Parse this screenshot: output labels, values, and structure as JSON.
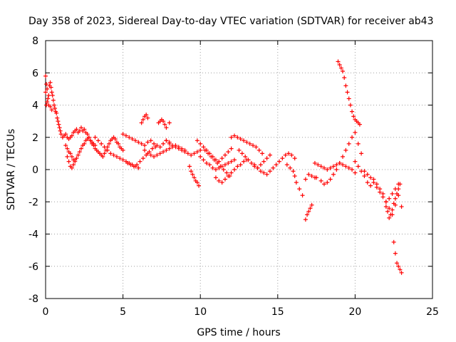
{
  "chart_data": {
    "type": "scatter",
    "title": "Day 358 of 2023, Sidereal Day-to-day VTEC variation (SDTVAR) for receiver ab43",
    "xlabel": "GPS time / hours",
    "ylabel": "SDTVAR / TECUs",
    "xlim": [
      0,
      25
    ],
    "ylim": [
      -8,
      8
    ],
    "xticks": [
      0,
      5,
      10,
      15,
      20,
      25
    ],
    "yticks": [
      -8,
      -6,
      -4,
      -2,
      0,
      2,
      4,
      6,
      8
    ],
    "grid": true,
    "marker": "plus",
    "color": "#ff0000",
    "series": [
      {
        "name": "SDTVAR",
        "x": [
          0.0,
          0.05,
          0.1,
          0.15,
          0.2,
          0.25,
          0.3,
          0.35,
          0.4,
          0.45,
          0.5,
          0.55,
          0.6,
          0.65,
          0.7,
          0.75,
          0.8,
          0.85,
          0.9,
          0.95,
          1.0,
          0.0,
          0.05,
          0.1,
          0.2,
          0.3,
          0.4,
          1.1,
          1.2,
          1.3,
          1.4,
          1.5,
          1.6,
          1.7,
          1.8,
          1.9,
          2.0,
          2.1,
          2.2,
          2.3,
          2.4,
          2.5,
          2.6,
          2.7,
          2.8,
          2.9,
          3.0,
          1.3,
          1.4,
          1.5,
          1.6,
          1.7,
          1.8,
          1.9,
          2.0,
          2.1,
          2.2,
          2.3,
          2.4,
          2.5,
          2.6,
          2.7,
          2.8,
          2.9,
          3.0,
          3.1,
          3.2,
          1.4,
          1.5,
          1.6,
          1.7,
          1.8,
          1.9,
          3.1,
          3.2,
          3.3,
          3.4,
          3.5,
          3.6,
          3.7,
          3.8,
          3.9,
          4.0,
          4.1,
          4.2,
          4.3,
          4.4,
          4.5,
          4.6,
          4.7,
          4.8,
          4.9,
          5.0,
          3.2,
          3.4,
          3.6,
          3.8,
          4.0,
          4.2,
          4.4,
          4.6,
          4.8,
          5.0,
          5.2,
          5.4,
          5.6,
          5.8,
          6.0,
          5.0,
          5.2,
          5.4,
          5.6,
          5.8,
          6.0,
          6.2,
          6.4,
          6.6,
          6.8,
          7.0,
          7.2,
          7.4,
          7.6,
          7.8,
          8.0,
          5.3,
          5.5,
          5.7,
          5.9,
          6.1,
          6.3,
          6.5,
          6.7,
          6.9,
          7.1,
          6.2,
          6.3,
          6.4,
          6.5,
          6.6,
          7.3,
          7.4,
          7.5,
          7.6,
          7.7,
          7.8,
          8.0,
          6.4,
          6.6,
          6.8,
          7.0,
          7.2,
          7.4,
          7.6,
          7.8,
          8.0,
          8.2,
          8.4,
          8.6,
          8.8,
          9.0,
          7.8,
          8.0,
          8.2,
          8.4,
          8.6,
          8.8,
          9.0,
          9.2,
          9.4,
          9.6,
          9.8,
          10.0,
          9.3,
          9.4,
          9.5,
          9.6,
          9.7,
          9.8,
          9.9,
          9.8,
          10.0,
          10.2,
          10.4,
          10.6,
          10.8,
          11.0,
          11.2,
          11.4,
          11.6,
          11.8,
          12.0,
          10.0,
          10.2,
          10.4,
          10.6,
          10.8,
          11.0,
          11.2,
          11.4,
          11.6,
          11.8,
          12.0,
          12.2,
          10.3,
          10.5,
          10.7,
          10.9,
          11.1,
          11.3,
          11.5,
          11.7,
          11.9,
          11.0,
          11.2,
          11.4,
          11.6,
          11.8,
          12.0,
          12.2,
          12.4,
          12.6,
          12.8,
          13.0,
          12.0,
          12.2,
          12.4,
          12.6,
          12.8,
          13.0,
          13.2,
          13.4,
          13.6,
          13.8,
          14.0,
          12.5,
          12.7,
          12.9,
          13.1,
          13.3,
          13.5,
          13.7,
          13.9,
          14.1,
          14.3,
          14.5,
          13.5,
          13.7,
          13.9,
          14.1,
          14.3,
          14.5,
          14.7,
          14.9,
          15.1,
          15.3,
          15.5,
          15.7,
          15.9,
          16.1,
          15.6,
          15.8,
          16.0,
          16.1,
          16.2,
          16.4,
          16.6,
          16.8,
          16.9,
          17.0,
          17.1,
          17.2,
          16.8,
          17.0,
          17.2,
          17.4,
          17.4,
          17.6,
          17.8,
          18.0,
          18.2,
          18.4,
          18.6,
          18.8,
          19.0,
          19.2,
          19.4,
          19.6,
          19.8,
          20.0,
          17.5,
          17.8,
          18.0,
          18.2,
          18.4,
          18.6,
          18.8,
          19.0,
          19.2,
          19.4,
          19.6,
          19.8,
          20.0,
          20.2,
          20.4,
          18.9,
          19.0,
          19.1,
          19.2,
          19.3,
          19.4,
          19.5,
          19.6,
          19.7,
          19.8,
          19.9,
          20.0,
          20.1,
          20.2,
          20.3,
          20.0,
          20.2,
          20.4,
          20.6,
          20.8,
          21.0,
          21.2,
          21.4,
          21.6,
          21.8,
          22.0,
          22.2,
          22.4,
          22.6,
          22.8,
          23.0,
          20.6,
          20.8,
          21.0,
          21.2,
          21.4,
          21.6,
          21.8,
          22.0,
          22.2,
          22.4,
          22.6,
          22.8,
          22.0,
          22.1,
          22.2,
          22.3,
          22.4,
          22.5,
          22.6,
          22.7,
          22.8,
          22.9,
          22.5,
          22.6,
          22.7,
          22.8,
          22.9,
          23.0
        ],
        "y": [
          4.8,
          5.3,
          5.0,
          4.4,
          4.6,
          5.2,
          5.4,
          5.1,
          4.8,
          4.6,
          4.3,
          4.0,
          3.8,
          3.6,
          3.5,
          3.2,
          3.0,
          2.8,
          2.6,
          2.4,
          2.2,
          5.8,
          4.0,
          4.2,
          4.0,
          3.9,
          3.7,
          2.0,
          2.1,
          2.2,
          2.0,
          1.9,
          2.0,
          2.1,
          2.3,
          2.4,
          2.5,
          2.3,
          2.4,
          2.6,
          2.4,
          2.5,
          2.3,
          2.2,
          2.0,
          1.8,
          1.6,
          1.5,
          1.3,
          1.1,
          1.0,
          0.8,
          0.6,
          0.5,
          0.7,
          0.9,
          1.1,
          1.3,
          1.5,
          1.6,
          1.8,
          1.9,
          2.0,
          1.8,
          1.7,
          1.6,
          1.5,
          0.8,
          0.5,
          0.2,
          0.1,
          0.3,
          0.6,
          1.5,
          1.3,
          1.2,
          1.1,
          1.0,
          0.9,
          0.8,
          1.0,
          1.2,
          1.4,
          1.6,
          1.8,
          1.9,
          2.0,
          1.9,
          1.7,
          1.6,
          1.4,
          1.3,
          1.2,
          2.0,
          1.8,
          1.6,
          1.4,
          1.2,
          1.0,
          0.9,
          0.8,
          0.7,
          0.6,
          0.5,
          0.4,
          0.3,
          0.2,
          0.1,
          2.2,
          2.1,
          2.0,
          1.9,
          1.8,
          1.7,
          1.6,
          1.5,
          1.7,
          1.8,
          1.6,
          1.5,
          1.4,
          1.6,
          1.8,
          1.7,
          0.4,
          0.3,
          0.2,
          0.3,
          0.5,
          0.7,
          0.9,
          1.1,
          1.3,
          1.4,
          2.9,
          3.1,
          3.3,
          3.4,
          3.2,
          2.9,
          3.0,
          3.1,
          3.0,
          2.8,
          2.6,
          2.9,
          1.2,
          1.0,
          0.9,
          0.8,
          0.9,
          1.0,
          1.1,
          1.2,
          1.3,
          1.4,
          1.5,
          1.4,
          1.3,
          1.2,
          1.8,
          1.6,
          1.5,
          1.4,
          1.3,
          1.2,
          1.1,
          1.0,
          0.9,
          1.0,
          1.1,
          1.2,
          0.2,
          -0.1,
          -0.3,
          -0.5,
          -0.7,
          -0.8,
          -1.0,
          1.8,
          1.6,
          1.4,
          1.2,
          1.0,
          0.8,
          0.6,
          0.5,
          0.7,
          0.9,
          1.1,
          1.3,
          0.8,
          0.6,
          0.4,
          0.3,
          0.1,
          0.0,
          0.1,
          0.2,
          0.3,
          0.4,
          0.5,
          0.6,
          1.2,
          1.0,
          0.8,
          0.6,
          0.4,
          0.2,
          0.0,
          -0.2,
          -0.4,
          -0.5,
          -0.7,
          -0.8,
          -0.6,
          -0.4,
          -0.2,
          0.0,
          0.2,
          0.3,
          0.5,
          0.6,
          2.0,
          2.1,
          2.0,
          1.9,
          1.8,
          1.7,
          1.6,
          1.5,
          1.4,
          1.2,
          1.0,
          1.2,
          1.0,
          0.8,
          0.6,
          0.4,
          0.2,
          0.1,
          0.3,
          0.5,
          0.7,
          0.9,
          0.3,
          0.1,
          -0.1,
          -0.2,
          -0.3,
          -0.1,
          0.1,
          0.3,
          0.5,
          0.7,
          0.9,
          1.0,
          0.9,
          0.7,
          0.3,
          0.1,
          -0.1,
          -0.4,
          -0.8,
          -1.2,
          -1.6,
          -3.1,
          -2.8,
          -2.6,
          -2.4,
          -2.2,
          -0.6,
          -0.3,
          -0.4,
          -0.5,
          0.4,
          0.3,
          0.2,
          0.1,
          0.0,
          0.1,
          0.2,
          0.3,
          0.4,
          0.3,
          0.2,
          0.1,
          0.0,
          -0.2,
          -0.5,
          -0.7,
          -0.9,
          -0.8,
          -0.6,
          -0.3,
          0.0,
          0.4,
          0.8,
          1.2,
          1.6,
          2.0,
          2.3,
          1.6,
          1.0,
          6.7,
          6.5,
          6.3,
          6.1,
          5.7,
          5.2,
          4.8,
          4.4,
          4.0,
          3.6,
          3.3,
          3.1,
          3.0,
          2.9,
          2.8,
          0.5,
          0.2,
          -0.1,
          -0.4,
          -0.8,
          -1.0,
          -0.6,
          -0.9,
          -1.2,
          -1.5,
          -2.0,
          -2.4,
          -2.8,
          -2.2,
          -1.6,
          -2.3,
          -0.1,
          -0.3,
          -0.5,
          -0.8,
          -1.1,
          -1.4,
          -1.7,
          -2.0,
          -1.8,
          -1.5,
          -1.2,
          -0.9,
          -2.3,
          -2.6,
          -3.0,
          -2.8,
          -2.5,
          -2.1,
          -1.8,
          -1.5,
          -1.2,
          -0.9,
          -4.5,
          -5.2,
          -5.8,
          -6.0,
          -6.2,
          -6.4
        ]
      }
    ]
  }
}
